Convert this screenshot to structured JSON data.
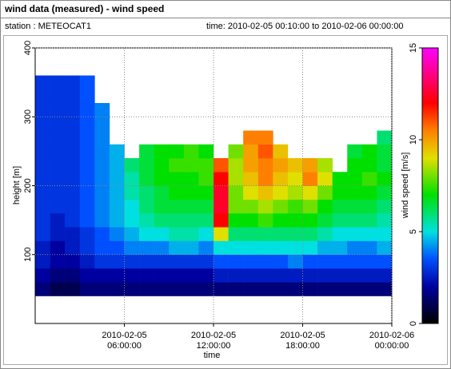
{
  "chart_data": {
    "type": "heatmap",
    "title": "wind data (measured) - wind speed",
    "station": "station : METEOCAT1",
    "time_range": "time: 2010-02-05 00:10:00 to 2010-02-06 00:00:00",
    "xlabel": "time",
    "ylabel": "height [m]",
    "colorbar_label": "wind speed [m/s]",
    "xlim": [
      0,
      24
    ],
    "xticks": [
      {
        "value": 6,
        "label": "2010-02-05 06:00:00"
      },
      {
        "value": 12,
        "label": "2010-02-05 12:00:00"
      },
      {
        "value": 18,
        "label": "2010-02-05 18:00:00"
      },
      {
        "value": 24,
        "label": "2010-02-06 00:00:00"
      }
    ],
    "ylim": [
      0,
      400
    ],
    "yticks": [
      100,
      200,
      300,
      400
    ],
    "clim": [
      0,
      15
    ],
    "cticks": [
      0,
      5,
      10,
      15
    ],
    "colorscale": [
      [
        0,
        "#000000"
      ],
      [
        2,
        "#0000a0"
      ],
      [
        3.5,
        "#0050ff"
      ],
      [
        5,
        "#00e0e0"
      ],
      [
        7,
        "#00e000"
      ],
      [
        9,
        "#e0e000"
      ],
      [
        10.5,
        "#ff8000"
      ],
      [
        12,
        "#ff0000"
      ],
      [
        15,
        "#ff00ff"
      ]
    ],
    "grid": true,
    "xbins": [
      0,
      1,
      2,
      3,
      4,
      5,
      6,
      7,
      8,
      9,
      10,
      11,
      12,
      13,
      14,
      15,
      16,
      17,
      18,
      19,
      20,
      21,
      22,
      23,
      24
    ],
    "ybins": [
      40,
      60,
      80,
      100,
      120,
      140,
      160,
      180,
      200,
      220,
      240,
      260,
      280,
      300,
      320,
      340,
      360
    ],
    "values": [
      [
        1.5,
        2,
        2.5,
        2.5,
        3,
        3,
        3,
        3,
        3,
        3,
        3,
        3,
        3,
        3,
        3,
        3
      ],
      [
        1,
        1.5,
        2,
        2,
        2.5,
        2.5,
        3,
        3,
        3,
        3,
        3,
        3,
        3,
        3,
        3,
        3
      ],
      [
        1,
        1.5,
        2,
        2.5,
        2.5,
        3,
        3,
        3,
        3,
        3,
        3,
        3,
        3,
        3,
        3,
        3
      ],
      [
        1.5,
        2,
        2.5,
        3,
        3,
        3.5,
        3.5,
        3.5,
        3.5,
        3.5,
        3.5,
        3.5,
        3.5,
        3.5,
        3.5,
        3.5
      ],
      [
        1.5,
        2,
        3,
        3.5,
        3.5,
        4,
        4,
        4,
        4,
        4,
        4,
        4,
        4,
        4,
        null,
        null
      ],
      [
        1.5,
        2,
        3,
        3.5,
        4,
        4.5,
        4.5,
        4.5,
        4.5,
        4.5,
        4.5,
        null,
        null,
        null,
        null,
        null
      ],
      [
        1.5,
        2,
        3,
        4,
        4.5,
        5,
        5,
        5.5,
        5.5,
        6,
        null,
        null,
        null,
        null,
        null,
        null
      ],
      [
        1.5,
        2,
        3,
        4,
        5,
        5.5,
        6,
        6,
        6.5,
        6.5,
        6.5,
        null,
        null,
        null,
        null,
        null
      ],
      [
        1.5,
        2,
        3,
        4,
        5,
        6,
        6.5,
        6.5,
        7,
        7,
        7,
        null,
        null,
        null,
        null,
        null
      ],
      [
        1.5,
        2,
        3,
        4.5,
        5.5,
        6,
        6.5,
        7,
        7,
        7.5,
        7,
        null,
        null,
        null,
        null,
        null
      ],
      [
        1.5,
        2,
        3,
        4.5,
        5.5,
        6,
        6.5,
        7,
        7,
        7.5,
        7.5,
        null,
        null,
        null,
        null,
        null
      ],
      [
        1.5,
        2,
        3,
        4,
        5,
        6,
        6.5,
        7,
        7.5,
        7.5,
        7,
        null,
        null,
        null,
        null,
        null
      ],
      [
        1.5,
        2.5,
        3.5,
        5,
        9,
        12,
        12.5,
        12.5,
        12,
        11,
        null,
        null,
        null,
        null,
        null,
        null
      ],
      [
        1.5,
        2.5,
        3.5,
        5,
        6,
        7,
        8,
        8,
        8.5,
        8.5,
        8,
        null,
        null,
        null,
        null,
        null
      ],
      [
        1.5,
        2.5,
        3.5,
        5,
        6,
        7,
        8,
        9,
        9.5,
        10,
        10,
        10.5,
        null,
        null,
        null,
        null
      ],
      [
        1.5,
        2.5,
        3.5,
        5,
        6,
        7.5,
        8.5,
        9.5,
        10.5,
        10.5,
        11,
        10.5,
        null,
        null,
        null,
        null
      ],
      [
        1.5,
        2.5,
        3.5,
        5,
        6,
        7,
        8,
        9,
        9.5,
        10,
        9.5,
        null,
        null,
        null,
        null,
        null
      ],
      [
        1.5,
        2.5,
        4,
        5,
        6,
        7,
        7.5,
        8.5,
        9,
        9.5,
        null,
        null,
        null,
        null,
        null,
        null
      ],
      [
        1.5,
        2.5,
        3.5,
        5,
        6,
        7,
        8,
        9,
        10.5,
        10,
        null,
        null,
        null,
        null,
        null,
        null
      ],
      [
        1.5,
        2.5,
        3.5,
        4.5,
        5.5,
        6.5,
        7,
        8,
        9,
        8.5,
        null,
        null,
        null,
        null,
        null,
        null
      ],
      [
        1.5,
        2.5,
        3.5,
        4.5,
        5,
        6,
        6.5,
        7,
        7,
        null,
        null,
        null,
        null,
        null,
        null,
        null
      ],
      [
        1.5,
        2.5,
        3.5,
        4,
        5,
        6,
        6.5,
        7,
        7,
        7,
        6.5,
        null,
        null,
        null,
        null,
        null
      ],
      [
        1.5,
        2.5,
        3.5,
        4,
        5,
        6,
        6.5,
        7,
        7.5,
        7,
        7,
        null,
        null,
        null,
        null,
        null
      ],
      [
        1.5,
        2.5,
        3.5,
        4.5,
        5,
        5.5,
        6,
        6.5,
        7,
        6.5,
        6.5,
        6,
        null,
        null,
        null,
        null
      ]
    ]
  }
}
